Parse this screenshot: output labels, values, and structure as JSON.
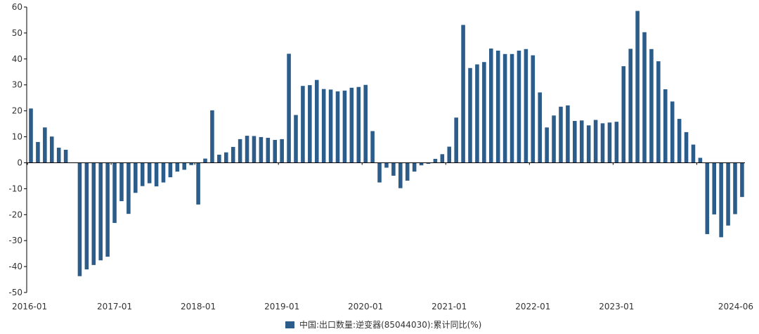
{
  "chart_data": {
    "type": "bar",
    "title": "",
    "xlabel": "",
    "ylabel": "",
    "ylim": [
      -50,
      60
    ],
    "yticks": [
      -50,
      -40,
      -30,
      -20,
      -10,
      0,
      10,
      20,
      30,
      40,
      50,
      60
    ],
    "xtick_labels": [
      "2016-01",
      "2017-01",
      "2018-01",
      "2019-01",
      "2020-01",
      "2021-01",
      "2022-01",
      "2023-01",
      "2024-06"
    ],
    "grid": false,
    "legend_position": "bottom-center",
    "bar_color": "#2b5c8a",
    "series": [
      {
        "name": "中国:出口数量:逆变器(85044030):累计同比(%)",
        "points": [
          {
            "x": "2016-01",
            "y": 20.9
          },
          {
            "x": "2016-02",
            "y": 8.0
          },
          {
            "x": "2016-03",
            "y": 13.6
          },
          {
            "x": "2016-04",
            "y": 10.1
          },
          {
            "x": "2016-05",
            "y": 5.8
          },
          {
            "x": "2016-06",
            "y": 5.0
          },
          {
            "x": "2016-08",
            "y": -43.7
          },
          {
            "x": "2016-09",
            "y": -41.1
          },
          {
            "x": "2016-10",
            "y": -39.4
          },
          {
            "x": "2016-11",
            "y": -37.6
          },
          {
            "x": "2016-12",
            "y": -36.2
          },
          {
            "x": "2017-01",
            "y": -23.2
          },
          {
            "x": "2017-02",
            "y": -14.8
          },
          {
            "x": "2017-03",
            "y": -19.7
          },
          {
            "x": "2017-04",
            "y": -11.6
          },
          {
            "x": "2017-05",
            "y": -9.0
          },
          {
            "x": "2017-06",
            "y": -7.9
          },
          {
            "x": "2017-07",
            "y": -9.1
          },
          {
            "x": "2017-08",
            "y": -7.6
          },
          {
            "x": "2017-09",
            "y": -5.6
          },
          {
            "x": "2017-10",
            "y": -3.4
          },
          {
            "x": "2017-11",
            "y": -2.7
          },
          {
            "x": "2017-12",
            "y": -0.9
          },
          {
            "x": "2018-01",
            "y": -16.1
          },
          {
            "x": "2018-02",
            "y": 1.6
          },
          {
            "x": "2018-03",
            "y": 20.2
          },
          {
            "x": "2018-04",
            "y": 3.1
          },
          {
            "x": "2018-05",
            "y": 4.0
          },
          {
            "x": "2018-06",
            "y": 6.1
          },
          {
            "x": "2018-07",
            "y": 9.1
          },
          {
            "x": "2018-08",
            "y": 10.4
          },
          {
            "x": "2018-09",
            "y": 10.3
          },
          {
            "x": "2018-10",
            "y": 9.9
          },
          {
            "x": "2018-11",
            "y": 9.6
          },
          {
            "x": "2018-12",
            "y": 8.8
          },
          {
            "x": "2019-01",
            "y": 9.1
          },
          {
            "x": "2019-02",
            "y": 42.0
          },
          {
            "x": "2019-03",
            "y": 18.4
          },
          {
            "x": "2019-04",
            "y": 29.6
          },
          {
            "x": "2019-05",
            "y": 29.9
          },
          {
            "x": "2019-06",
            "y": 31.9
          },
          {
            "x": "2019-07",
            "y": 28.4
          },
          {
            "x": "2019-08",
            "y": 28.2
          },
          {
            "x": "2019-09",
            "y": 27.5
          },
          {
            "x": "2019-10",
            "y": 27.8
          },
          {
            "x": "2019-11",
            "y": 28.9
          },
          {
            "x": "2019-12",
            "y": 29.2
          },
          {
            "x": "2020-01",
            "y": 30.0
          },
          {
            "x": "2020-02",
            "y": 12.2
          },
          {
            "x": "2020-03",
            "y": -7.6
          },
          {
            "x": "2020-04",
            "y": -1.9
          },
          {
            "x": "2020-05",
            "y": -5.0
          },
          {
            "x": "2020-06",
            "y": -9.8
          },
          {
            "x": "2020-07",
            "y": -6.9
          },
          {
            "x": "2020-08",
            "y": -3.4
          },
          {
            "x": "2020-09",
            "y": -1.0
          },
          {
            "x": "2020-10",
            "y": -0.4
          },
          {
            "x": "2020-11",
            "y": 1.5
          },
          {
            "x": "2020-12",
            "y": 3.3
          },
          {
            "x": "2021-01",
            "y": 6.2
          },
          {
            "x": "2021-02",
            "y": 17.4
          },
          {
            "x": "2021-03",
            "y": 53.1
          },
          {
            "x": "2021-04",
            "y": 36.5
          },
          {
            "x": "2021-05",
            "y": 37.9
          },
          {
            "x": "2021-06",
            "y": 38.8
          },
          {
            "x": "2021-07",
            "y": 44.0
          },
          {
            "x": "2021-08",
            "y": 43.2
          },
          {
            "x": "2021-09",
            "y": 41.9
          },
          {
            "x": "2021-10",
            "y": 41.9
          },
          {
            "x": "2021-11",
            "y": 43.2
          },
          {
            "x": "2021-12",
            "y": 43.8
          },
          {
            "x": "2022-01",
            "y": 41.4
          },
          {
            "x": "2022-02",
            "y": 27.1
          },
          {
            "x": "2022-03",
            "y": 13.6
          },
          {
            "x": "2022-04",
            "y": 18.2
          },
          {
            "x": "2022-05",
            "y": 21.6
          },
          {
            "x": "2022-06",
            "y": 22.1
          },
          {
            "x": "2022-07",
            "y": 16.1
          },
          {
            "x": "2022-08",
            "y": 16.3
          },
          {
            "x": "2022-09",
            "y": 14.4
          },
          {
            "x": "2022-10",
            "y": 16.5
          },
          {
            "x": "2022-11",
            "y": 15.2
          },
          {
            "x": "2022-12",
            "y": 15.5
          },
          {
            "x": "2023-01",
            "y": 15.8
          },
          {
            "x": "2023-02",
            "y": 37.2
          },
          {
            "x": "2023-03",
            "y": 43.9
          },
          {
            "x": "2023-04",
            "y": 58.5
          },
          {
            "x": "2023-05",
            "y": 50.3
          },
          {
            "x": "2023-06",
            "y": 43.8
          },
          {
            "x": "2023-07",
            "y": 39.1
          },
          {
            "x": "2023-08",
            "y": 28.3
          },
          {
            "x": "2023-09",
            "y": 23.6
          },
          {
            "x": "2023-10",
            "y": 16.9
          },
          {
            "x": "2023-11",
            "y": 11.8
          },
          {
            "x": "2023-12",
            "y": 7.0
          },
          {
            "x": "2024-01",
            "y": 1.9
          },
          {
            "x": "2024-02",
            "y": -27.5
          },
          {
            "x": "2024-03",
            "y": -19.9
          },
          {
            "x": "2024-04",
            "y": -28.7
          },
          {
            "x": "2024-05",
            "y": -24.2
          },
          {
            "x": "2024-06",
            "y": -19.8
          },
          {
            "x": "2024-07",
            "y": -13.2
          }
        ]
      }
    ]
  }
}
